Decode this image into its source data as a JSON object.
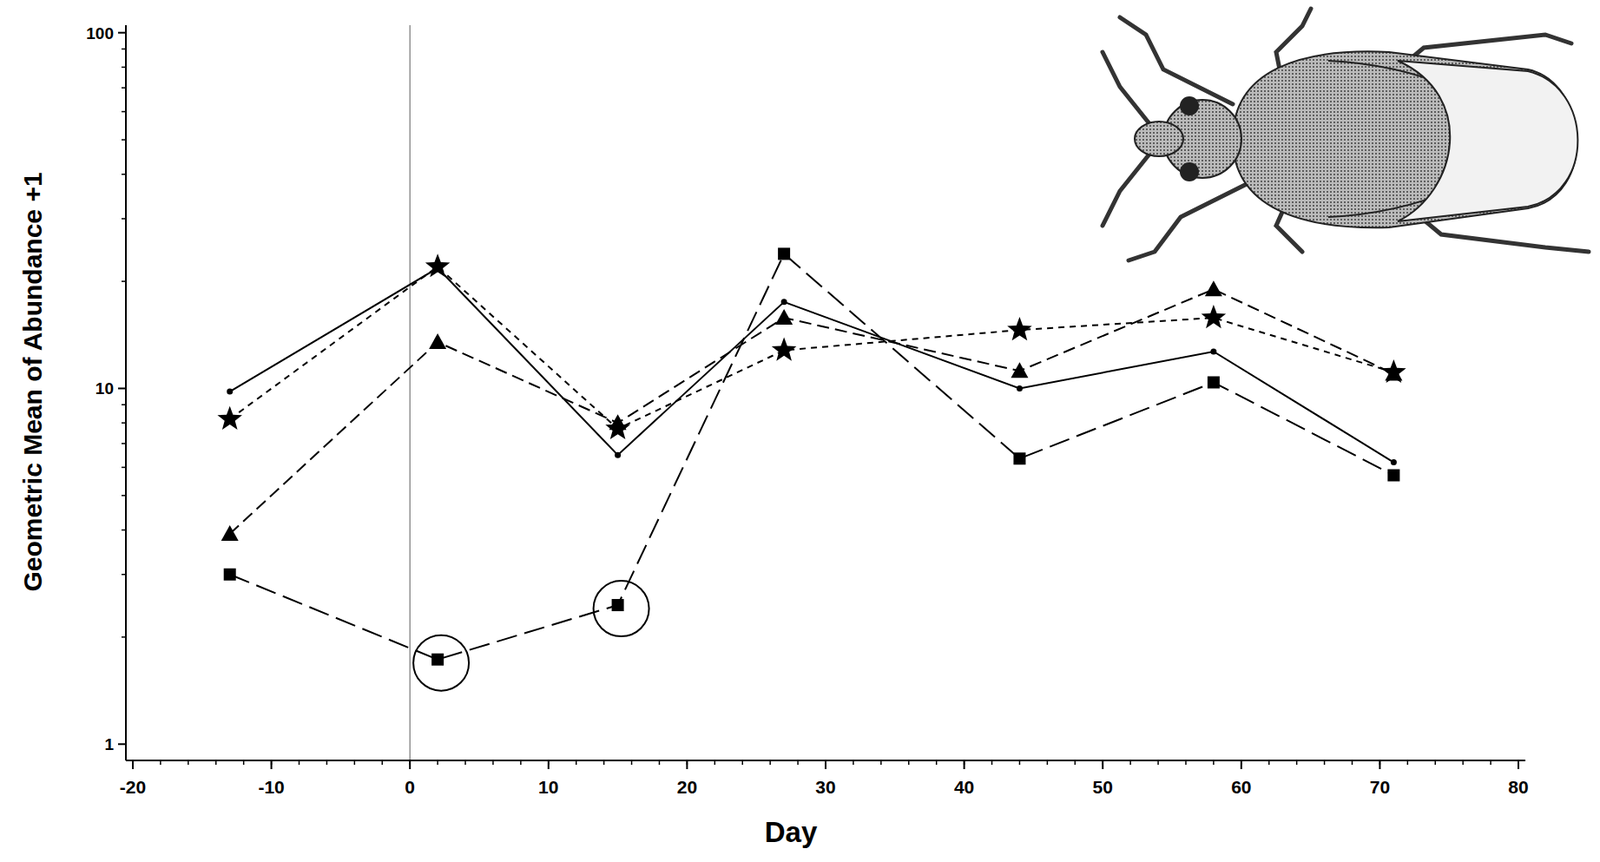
{
  "chart_data": {
    "type": "line",
    "x_label": "Day",
    "y_label": "Geometric Mean of Abundance +1",
    "x": [
      -13,
      2,
      15,
      27,
      44,
      58,
      71
    ],
    "series": [
      {
        "color": "#000000",
        "marker": "dot",
        "line_style": "solid",
        "values": [
          9.8,
          21.8,
          6.5,
          17.5,
          10.0,
          12.7,
          6.2
        ]
      },
      {
        "color": "#000000",
        "marker": "star",
        "line_style": "short-dash",
        "values": [
          8.2,
          22.0,
          7.7,
          12.8,
          14.6,
          15.8,
          11.1
        ]
      },
      {
        "color": "#000000",
        "marker": "triangle",
        "line_style": "dash",
        "values": [
          3.9,
          13.5,
          8.0,
          15.8,
          11.2,
          19.0,
          11.0
        ]
      },
      {
        "color": "#000000",
        "marker": "square",
        "line_style": "long-dash",
        "values": [
          3.0,
          1.73,
          2.46,
          23.9,
          6.35,
          10.4,
          5.7
        ]
      }
    ],
    "xlim": [
      -20.5,
      80.5
    ],
    "xticks": [
      -20,
      -10,
      0,
      10,
      20,
      30,
      40,
      50,
      60,
      70,
      80
    ],
    "ylim": [
      0.9,
      105
    ],
    "yticks": [
      1,
      10,
      100
    ],
    "log": "y",
    "grid": false,
    "reference_line_x": 0,
    "circled_points": [
      {
        "x": 2,
        "y": 1.73
      },
      {
        "x": 15,
        "y": 2.46
      }
    ]
  }
}
